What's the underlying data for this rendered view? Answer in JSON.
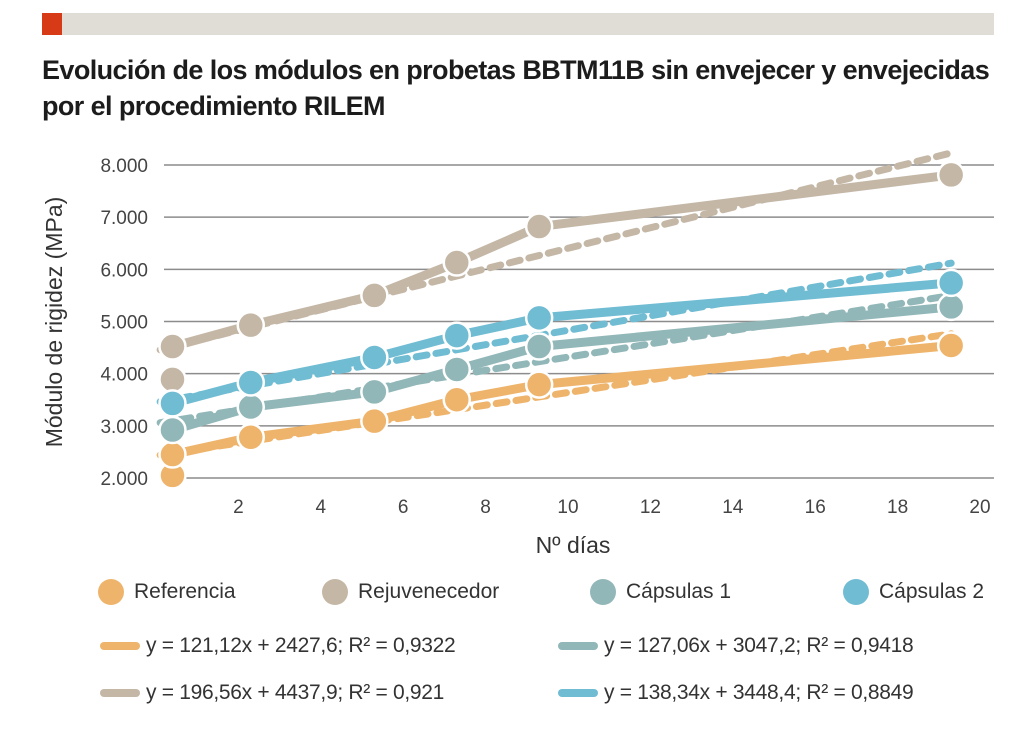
{
  "header": {
    "accent_color": "#d63a17",
    "title": "Evolución de los módulos en probetas BBTM11B sin envejecer y envejecidas por el procedimiento RILEM"
  },
  "chart_data": {
    "type": "line",
    "title": "Evolución de los módulos en probetas BBTM11B sin envejecer y envejecidas por el procedimiento RILEM",
    "xlabel": "Nº días",
    "ylabel": "Módulo de rigidez (MPa)",
    "xlim": [
      0,
      20
    ],
    "ylim": [
      2000,
      8000
    ],
    "x_ticks": [
      2,
      4,
      6,
      8,
      10,
      12,
      14,
      16,
      18,
      20
    ],
    "x_tick_labels": [
      "2",
      "4",
      "6",
      "8",
      "10",
      "12",
      "14",
      "16",
      "18",
      "20"
    ],
    "y_ticks": [
      2000,
      3000,
      4000,
      5000,
      6000,
      7000,
      8000
    ],
    "y_tick_labels": [
      "2.000",
      "3.000",
      "4.000",
      "5.000",
      "6.000",
      "7.000",
      "8.000"
    ],
    "grid": "horizontal",
    "legend_placement": "bottom",
    "series": [
      {
        "name": "Referencia",
        "color": "#eeb46c",
        "x": [
          0.4,
          0.4,
          2.3,
          5.3,
          7.3,
          9.3,
          19.3
        ],
        "values": [
          2050,
          2450,
          2780,
          3090,
          3500,
          3790,
          4540
        ],
        "trendline": {
          "slope": 121.12,
          "intercept": 2427.6,
          "r2": 0.9322,
          "label": "y = 121,12x + 2427,6; R² = 0,9322"
        }
      },
      {
        "name": "Rejuvenecedor",
        "color": "#c4b7a6",
        "x": [
          0.4,
          0.4,
          2.3,
          5.3,
          7.3,
          9.3,
          19.3
        ],
        "values": [
          3890,
          4520,
          4930,
          5500,
          6130,
          6820,
          7810
        ],
        "trendline": {
          "slope": 196.56,
          "intercept": 4437.9,
          "r2": 0.921,
          "label": "y = 196,56x + 4437,9; R² = 0,921"
        }
      },
      {
        "name": "Cápsulas 1",
        "color": "#92b7b8",
        "x": [
          0.4,
          2.3,
          5.3,
          7.3,
          9.3,
          19.3
        ],
        "values": [
          2920,
          3360,
          3650,
          4080,
          4520,
          5280
        ],
        "trendline": {
          "slope": 127.06,
          "intercept": 3047.2,
          "r2": 0.9418,
          "label": "y = 127,06x + 3047,2; R² = 0,9418"
        }
      },
      {
        "name": "Cápsulas 2",
        "color": "#70bcd3",
        "x": [
          0.4,
          2.3,
          5.3,
          7.3,
          9.3,
          19.3
        ],
        "values": [
          3430,
          3830,
          4310,
          4730,
          5070,
          5740
        ],
        "trendline": {
          "slope": 138.34,
          "intercept": 3448.4,
          "r2": 0.8849,
          "label": "y = 138,34x + 3448,4; R² = 0,8849"
        }
      }
    ]
  },
  "legend": {
    "markers": [
      {
        "label": "Referencia",
        "color": "#eeb46c"
      },
      {
        "label": "Rejuvenecedor",
        "color": "#c4b7a6"
      },
      {
        "label": "Cápsulas 1",
        "color": "#92b7b8"
      },
      {
        "label": "Cápsulas 2",
        "color": "#70bcd3"
      }
    ],
    "equations": [
      {
        "label": "y = 121,12x + 2427,6; R² = 0,9322",
        "color": "#eeb46c"
      },
      {
        "label": "y = 127,06x + 3047,2; R² = 0,9418",
        "color": "#92b7b8"
      },
      {
        "label": "y = 196,56x + 4437,9; R² = 0,921",
        "color": "#c4b7a6"
      },
      {
        "label": "y = 138,34x + 3448,4; R² = 0,8849",
        "color": "#70bcd3"
      }
    ]
  }
}
